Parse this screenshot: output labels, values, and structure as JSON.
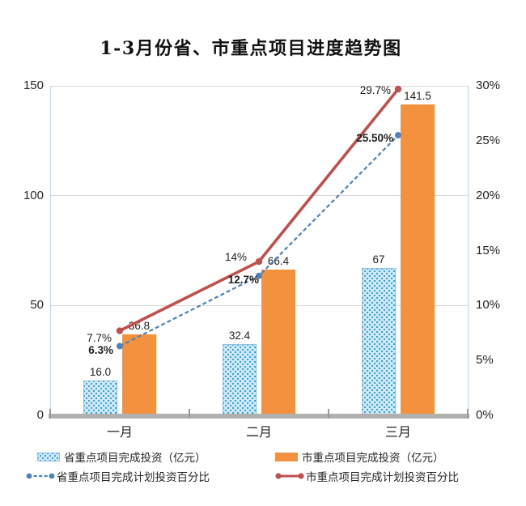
{
  "chart_data": {
    "type": "combo_bar_line",
    "title": "1-3月份省、市重点项目进度趋势图",
    "categories": [
      "一月",
      "二月",
      "三月"
    ],
    "series": [
      {
        "name": "省重点项目完成投资（亿元）",
        "chart_type": "bar",
        "axis": "left",
        "values": [
          16.0,
          32.4,
          67
        ],
        "data_labels": [
          "16.0",
          "32.4",
          "67"
        ],
        "fill": "dotted-pattern",
        "color": "#29A5DE",
        "bg_color": "#DAEAF7",
        "labels_bold": false
      },
      {
        "name": "市重点项目完成投资（亿元）",
        "chart_type": "bar",
        "axis": "left",
        "values": [
          36.8,
          66.4,
          141.5
        ],
        "data_labels": [
          "36.8",
          "66.4",
          "141.5"
        ],
        "fill": "solid",
        "color": "#F4913E",
        "labels_bold": false
      },
      {
        "name": "省重点项目完成计划投资百分比",
        "chart_type": "line",
        "line_style": "dashed",
        "axis": "right",
        "values": [
          6.3,
          12.7,
          25.5
        ],
        "data_labels": [
          "6.3%",
          "12.7%",
          "25.50%"
        ],
        "color": "#4F81BD",
        "labels_bold": true
      },
      {
        "name": "市重点项目完成计划投资百分比",
        "chart_type": "line",
        "line_style": "solid",
        "axis": "right",
        "values": [
          7.7,
          14.0,
          29.7
        ],
        "data_labels": [
          "7.7%",
          "14%",
          "29.7%"
        ],
        "color": "#C0504D",
        "labels_bold": false
      }
    ],
    "left_axis": {
      "min": 0,
      "max": 150,
      "tick_step": 50,
      "tick_labels": [
        "0",
        "50",
        "100",
        "150"
      ]
    },
    "right_axis": {
      "min": 0,
      "max": 30,
      "tick_step": 5,
      "tick_labels": [
        "0%",
        "5%",
        "10%",
        "15%",
        "20%",
        "25%",
        "30%"
      ]
    },
    "gridlines": "horizontal",
    "legend_position": "bottom"
  },
  "colors": {
    "orange": "#F4913E",
    "red": "#C0504D",
    "blue": "#4F81BD",
    "bar_bg": "#DAEAF7",
    "bar_dot": "#29A5DE",
    "grid": "#D9D9D9",
    "axis": "#BDD7EE",
    "band": "#B0B0B0"
  }
}
